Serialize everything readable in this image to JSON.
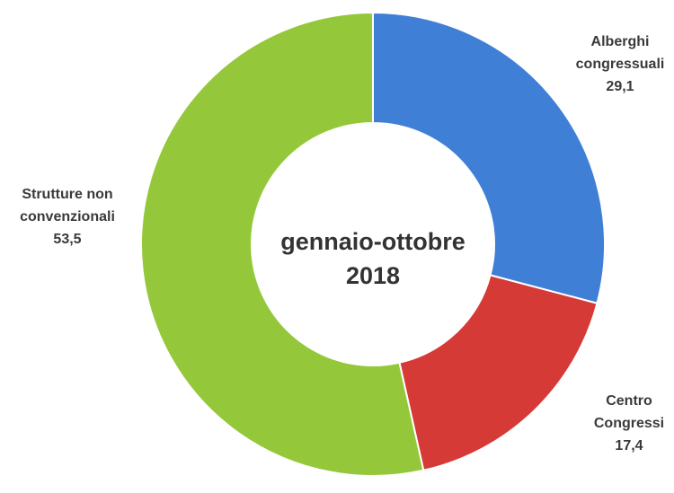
{
  "chart_data": {
    "type": "donut",
    "title": "gennaio-ottobre 2018",
    "categories": [
      "Alberghi congressuali",
      "Centro Congressi",
      "Strutture non convenzionali"
    ],
    "values": [
      29.1,
      17.4,
      53.5
    ],
    "value_labels": [
      "29,1",
      "17,4",
      "53,5"
    ],
    "colors": [
      "#3f7fd6",
      "#d63a36",
      "#94c83a"
    ]
  }
}
